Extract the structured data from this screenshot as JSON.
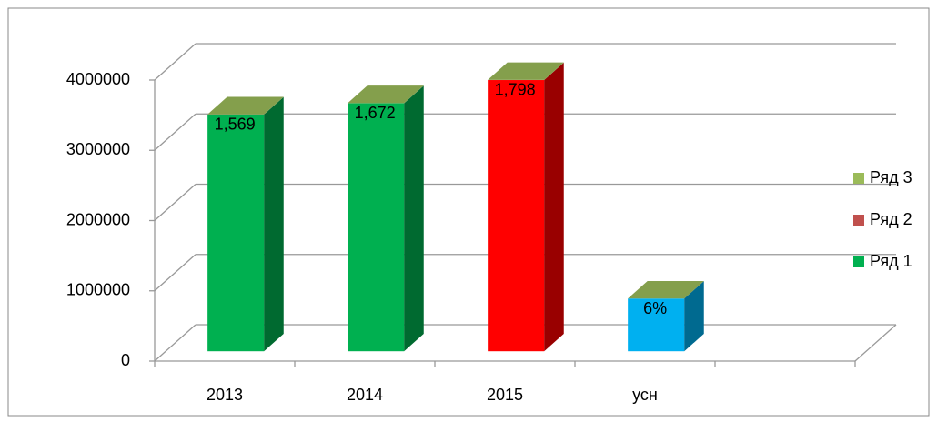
{
  "chart_data": {
    "type": "bar3d_stacked",
    "categories": [
      "2013",
      "2014",
      "2015",
      "усн",
      null
    ],
    "series": [
      {
        "name": "Ряд 1",
        "color": "#00b050",
        "point_colors": [
          "#00b050",
          "#00b050",
          "#ff0000",
          "#00b0f0",
          null
        ],
        "values": [
          3370000,
          3530000,
          3860000,
          750000,
          null
        ]
      },
      {
        "name": "Ряд 2",
        "color": "#c0504d",
        "values": [
          null,
          null,
          null,
          null,
          null
        ]
      },
      {
        "name": "Ряд 3",
        "color": "#9bbb59",
        "values": [
          1569,
          1672,
          1798,
          6,
          null
        ],
        "value_labels": [
          "1,569",
          "1,672",
          "1,798",
          "6%",
          null
        ]
      }
    ],
    "ylim": [
      0,
      4000000
    ],
    "yticks": [
      0,
      1000000,
      2000000,
      3000000,
      4000000
    ],
    "grid": true,
    "legend": "right"
  }
}
